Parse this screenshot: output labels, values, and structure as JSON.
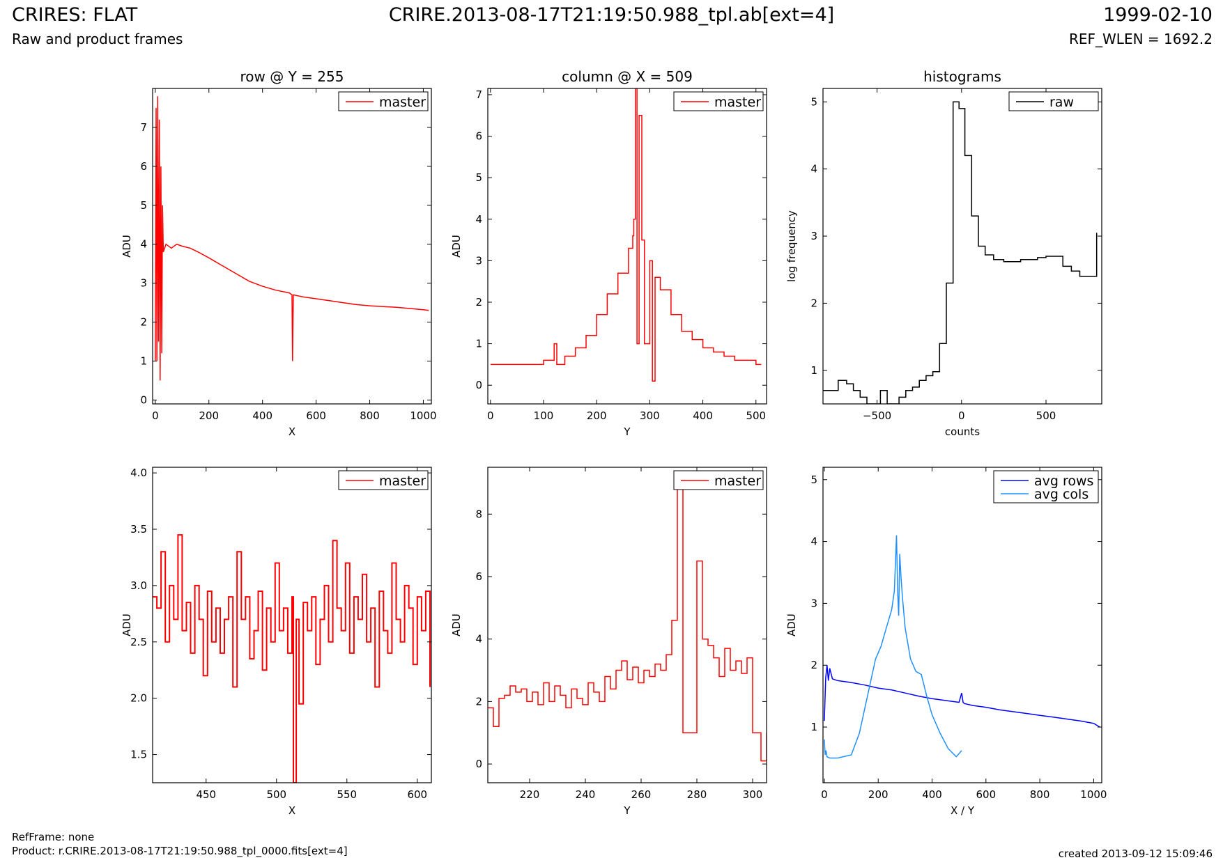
{
  "header": {
    "title": "CRIRES: FLAT",
    "subtitle": "Raw and product frames",
    "center_title": "CRIRE.2013-08-17T21:19:50.988_tpl.ab[ext=4]",
    "date": "1999-02-10",
    "ref_wlen": "REF_WLEN = 1692.2"
  },
  "footer": {
    "refframe": "RefFrame: none",
    "product": "Product: r.CRIRE.2013-08-17T21:19:50.988_tpl_0000.fits[ext=4]",
    "created": "created 2013-09-12 15:09:46"
  },
  "colors": {
    "master": "#ff0000",
    "avg_rows": "#0000ff",
    "avg_cols": "#1e90ff",
    "raw": "#000000"
  },
  "chart_data": [
    {
      "type": "line",
      "title": "row @ Y = 255",
      "xlabel": "X",
      "ylabel": "ADU",
      "xlim": [
        -10,
        1030
      ],
      "ylim": [
        -0.1,
        8.0
      ],
      "xticks": [
        0,
        200,
        400,
        600,
        800,
        1000
      ],
      "yticks": [
        0,
        1,
        2,
        3,
        4,
        5,
        6,
        7
      ],
      "legend": {
        "placement": "top-right",
        "entries": [
          "master"
        ]
      },
      "series": [
        {
          "name": "master",
          "color": "#ff0000",
          "step": false,
          "x": [
            0,
            3,
            6,
            9,
            12,
            15,
            18,
            21,
            24,
            27,
            30,
            40,
            60,
            80,
            100,
            130,
            160,
            200,
            250,
            300,
            350,
            400,
            450,
            500,
            510,
            512,
            515,
            550,
            600,
            650,
            700,
            750,
            800,
            850,
            900,
            950,
            1000,
            1020
          ],
          "y": [
            1.0,
            7.5,
            1.0,
            7.8,
            1.5,
            7.2,
            0.5,
            6.0,
            1.2,
            5.0,
            3.8,
            4.0,
            3.9,
            4.0,
            3.95,
            3.9,
            3.8,
            3.65,
            3.45,
            3.25,
            3.05,
            2.92,
            2.82,
            2.75,
            2.7,
            1.0,
            2.7,
            2.65,
            2.6,
            2.55,
            2.5,
            2.45,
            2.42,
            2.4,
            2.38,
            2.35,
            2.32,
            2.3
          ]
        }
      ]
    },
    {
      "type": "line",
      "title": "column @ X = 509",
      "xlabel": "Y",
      "ylabel": "ADU",
      "xlim": [
        -5,
        520
      ],
      "ylim": [
        -0.45,
        7.15
      ],
      "xticks": [
        0,
        100,
        200,
        300,
        400,
        500
      ],
      "yticks": [
        0,
        1,
        2,
        3,
        4,
        5,
        6,
        7
      ],
      "legend": {
        "placement": "top-right",
        "entries": [
          "master"
        ]
      },
      "series": [
        {
          "name": "master",
          "color": "#ff0000",
          "step": true,
          "x": [
            0,
            20,
            40,
            60,
            80,
            100,
            120,
            125,
            140,
            160,
            180,
            200,
            220,
            240,
            260,
            268,
            270,
            273,
            276,
            280,
            285,
            290,
            300,
            305,
            310,
            320,
            340,
            360,
            380,
            400,
            420,
            440,
            460,
            480,
            500,
            510
          ],
          "y": [
            0.5,
            0.5,
            0.5,
            0.5,
            0.5,
            0.6,
            1.0,
            0.5,
            0.7,
            0.9,
            1.2,
            1.7,
            2.2,
            2.7,
            3.3,
            3.6,
            4.0,
            7.2,
            1.0,
            6.5,
            3.5,
            1.0,
            3.0,
            0.1,
            2.6,
            2.3,
            1.7,
            1.3,
            1.1,
            0.9,
            0.8,
            0.7,
            0.6,
            0.6,
            0.5,
            0.5
          ]
        }
      ]
    },
    {
      "type": "line",
      "title": "histograms",
      "xlabel": "counts",
      "ylabel": "log frequency",
      "xlim": [
        -820,
        830
      ],
      "ylim": [
        0.5,
        5.2
      ],
      "xticks": [
        -500,
        0,
        500
      ],
      "yticks": [
        1,
        2,
        3,
        4,
        5
      ],
      "legend": {
        "placement": "top-right",
        "entries": [
          "raw"
        ]
      },
      "series": [
        {
          "name": "raw",
          "color": "#000000",
          "step": true,
          "x": [
            -820,
            -730,
            -680,
            -640,
            -600,
            -560,
            -520,
            -480,
            -440,
            -400,
            -370,
            -330,
            -290,
            -250,
            -210,
            -170,
            -130,
            -90,
            -50,
            -15,
            20,
            60,
            100,
            140,
            190,
            250,
            350,
            450,
            500,
            600,
            650,
            700,
            780,
            800
          ],
          "y": [
            0.7,
            0.85,
            0.8,
            0.7,
            0.6,
            0.5,
            0.5,
            0.7,
            0.5,
            0.5,
            0.6,
            0.7,
            0.75,
            0.85,
            0.92,
            0.98,
            1.4,
            2.3,
            5.0,
            4.9,
            4.2,
            3.3,
            2.85,
            2.72,
            2.65,
            2.62,
            2.65,
            2.68,
            2.7,
            2.55,
            2.48,
            2.4,
            2.4,
            3.05
          ]
        }
      ]
    },
    {
      "type": "line",
      "title": "",
      "xlabel": "X",
      "ylabel": "ADU",
      "xlim": [
        412,
        610
      ],
      "ylim": [
        1.25,
        4.05
      ],
      "xticks": [
        450,
        500,
        550,
        600
      ],
      "yticks": [
        1.5,
        2.0,
        2.5,
        3.0,
        3.5,
        4.0
      ],
      "legend": {
        "placement": "top-right",
        "entries": [
          "master"
        ]
      },
      "series": [
        {
          "name": "master",
          "color": "#ff0000",
          "step": true,
          "x": [
            412,
            415,
            418,
            421,
            424,
            427,
            430,
            433,
            436,
            439,
            442,
            445,
            448,
            451,
            454,
            457,
            460,
            463,
            466,
            469,
            472,
            475,
            478,
            481,
            484,
            487,
            490,
            493,
            496,
            499,
            502,
            505,
            508,
            511,
            512,
            514,
            516,
            519,
            522,
            525,
            528,
            531,
            534,
            537,
            540,
            543,
            546,
            549,
            552,
            555,
            558,
            561,
            564,
            567,
            570,
            573,
            576,
            579,
            582,
            585,
            588,
            591,
            594,
            597,
            600,
            603,
            606,
            609
          ],
          "y": [
            2.9,
            2.8,
            3.3,
            2.5,
            3.0,
            2.7,
            3.45,
            2.6,
            2.85,
            2.4,
            3.0,
            2.7,
            2.2,
            2.95,
            2.5,
            2.8,
            2.4,
            2.7,
            2.9,
            2.1,
            3.3,
            2.7,
            2.9,
            2.35,
            2.6,
            2.95,
            2.25,
            2.8,
            2.5,
            3.2,
            2.6,
            2.8,
            2.4,
            2.9,
            1.25,
            2.7,
            1.95,
            2.85,
            2.6,
            2.9,
            2.3,
            2.7,
            3.0,
            2.5,
            3.4,
            2.8,
            2.6,
            3.2,
            2.4,
            2.9,
            2.7,
            3.1,
            2.5,
            2.8,
            2.1,
            2.95,
            2.6,
            2.4,
            3.2,
            2.7,
            2.5,
            3.0,
            2.8,
            2.3,
            2.9,
            2.6,
            2.95,
            2.1
          ]
        }
      ]
    },
    {
      "type": "line",
      "title": "",
      "xlabel": "Y",
      "ylabel": "ADU",
      "xlim": [
        205,
        305
      ],
      "ylim": [
        -0.6,
        9.5
      ],
      "xticks": [
        220,
        240,
        260,
        280,
        300
      ],
      "yticks": [
        0,
        2,
        4,
        6,
        8
      ],
      "legend": {
        "placement": "top-right",
        "entries": [
          "master"
        ]
      },
      "series": [
        {
          "name": "master",
          "color": "#ff0000",
          "step": true,
          "x": [
            205,
            207,
            209,
            211,
            213,
            215,
            217,
            219,
            221,
            223,
            225,
            227,
            229,
            231,
            233,
            235,
            237,
            239,
            241,
            243,
            245,
            247,
            249,
            251,
            253,
            255,
            257,
            259,
            261,
            263,
            265,
            267,
            269,
            271,
            273,
            275,
            279,
            280,
            282,
            284,
            286,
            288,
            290,
            292,
            294,
            296,
            298,
            300,
            302,
            303,
            305
          ],
          "y": [
            1.8,
            1.2,
            2.1,
            2.2,
            2.5,
            2.3,
            2.4,
            2.0,
            2.3,
            1.9,
            2.6,
            2.0,
            2.5,
            2.2,
            1.8,
            2.4,
            2.1,
            1.9,
            2.6,
            2.3,
            2.0,
            2.8,
            2.4,
            3.0,
            3.3,
            2.7,
            3.1,
            2.6,
            3.0,
            2.8,
            3.2,
            3.0,
            3.5,
            4.6,
            9.0,
            1.0,
            1.0,
            6.5,
            4.0,
            3.8,
            3.4,
            2.8,
            3.7,
            3.0,
            3.3,
            2.9,
            3.4,
            1.0,
            1.0,
            0.1,
            1.0
          ]
        }
      ]
    },
    {
      "type": "line",
      "title": "",
      "xlabel": "X / Y",
      "ylabel": "ADU",
      "xlim": [
        -5,
        1030
      ],
      "ylim": [
        0.1,
        5.2
      ],
      "xticks": [
        0,
        200,
        400,
        600,
        800,
        1000
      ],
      "yticks": [
        1,
        2,
        3,
        4,
        5
      ],
      "legend": {
        "placement": "top-right",
        "entries": [
          "avg rows",
          "avg cols"
        ]
      },
      "series": [
        {
          "name": "avg rows",
          "color": "#0000ff",
          "step": false,
          "x": [
            0,
            5,
            10,
            15,
            20,
            30,
            50,
            100,
            150,
            200,
            250,
            300,
            350,
            400,
            450,
            500,
            510,
            515,
            520,
            550,
            600,
            650,
            700,
            750,
            800,
            850,
            900,
            950,
            1000,
            1023
          ],
          "y": [
            1.1,
            1.8,
            2.0,
            1.75,
            1.95,
            1.78,
            1.75,
            1.72,
            1.68,
            1.63,
            1.6,
            1.55,
            1.5,
            1.46,
            1.43,
            1.4,
            1.55,
            1.4,
            1.38,
            1.35,
            1.32,
            1.28,
            1.25,
            1.22,
            1.19,
            1.16,
            1.13,
            1.1,
            1.06,
            1.0
          ]
        },
        {
          "name": "avg cols",
          "color": "#1e90ff",
          "step": false,
          "x": [
            0,
            3,
            6,
            10,
            20,
            50,
            100,
            130,
            160,
            190,
            210,
            230,
            250,
            260,
            268,
            272,
            276,
            280,
            285,
            290,
            300,
            320,
            340,
            360,
            380,
            400,
            430,
            460,
            490,
            510
          ],
          "y": [
            0.8,
            0.55,
            0.62,
            0.52,
            0.5,
            0.5,
            0.55,
            0.9,
            1.5,
            2.1,
            2.3,
            2.6,
            2.9,
            3.2,
            4.1,
            3.2,
            2.8,
            3.8,
            3.4,
            3.1,
            2.6,
            2.1,
            1.9,
            1.85,
            1.5,
            1.2,
            0.9,
            0.65,
            0.52,
            0.62
          ]
        }
      ]
    }
  ]
}
